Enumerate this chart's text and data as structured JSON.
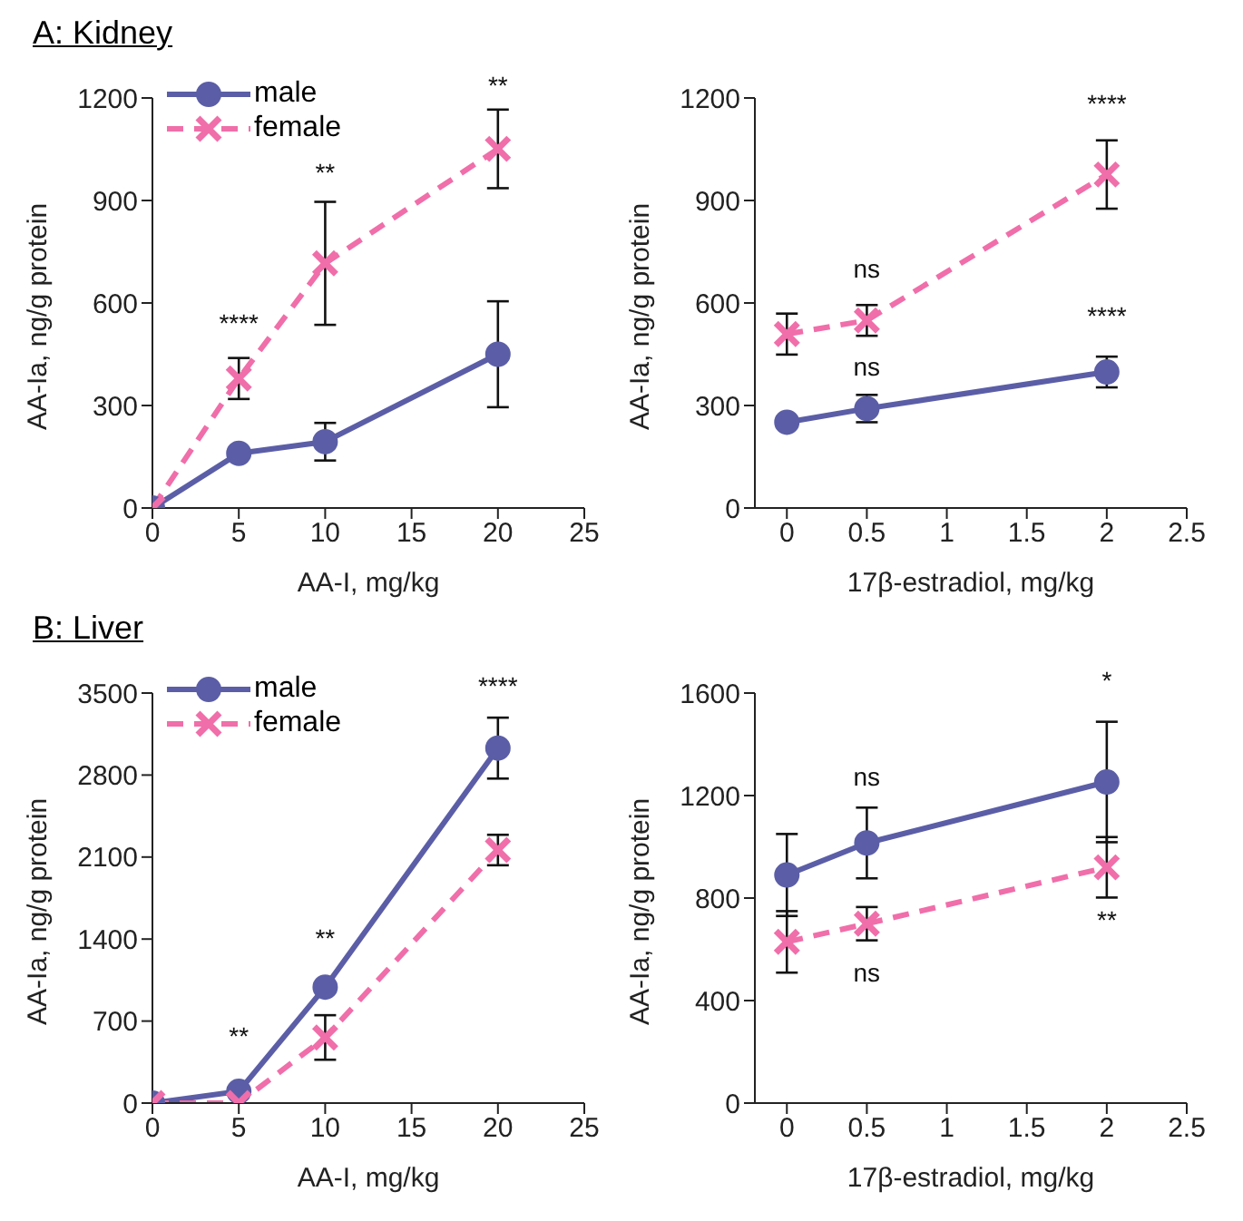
{
  "chart_data": [
    {
      "type": "line",
      "title": "A: Kidney",
      "xlabel": "AA-I, mg/kg",
      "ylabel": "AA-Ia, ng/g protein",
      "xlim": [
        0,
        25
      ],
      "xticks": [
        0,
        5,
        10,
        15,
        20,
        25
      ],
      "ylim": [
        0,
        1200
      ],
      "yticks": [
        0,
        300,
        600,
        900,
        1200
      ],
      "grid": false,
      "legend": "top left",
      "series": [
        {
          "name": "male",
          "color": "#5b5ea6",
          "x": [
            0,
            5,
            10,
            20
          ],
          "values": [
            0,
            160,
            194,
            450
          ],
          "errors": [
            null,
            null,
            55,
            155
          ],
          "marker": "circle",
          "line_style": "solid"
        },
        {
          "name": "female",
          "color": "#f06eaa",
          "x": [
            0,
            5,
            10,
            20
          ],
          "values": [
            0,
            379,
            716,
            1051
          ],
          "errors": [
            null,
            60,
            180,
            115
          ],
          "marker": "cross",
          "line_style": "dashed"
        }
      ],
      "annotations": [
        "****",
        "**",
        "**"
      ]
    },
    {
      "type": "line",
      "xlabel": "17β-estradiol, mg/kg",
      "ylabel": "AA-Ia, ng/g protein",
      "xlim": [
        -0.2,
        2.5
      ],
      "xticks": [
        0,
        0.5,
        1,
        1.5,
        2,
        2.5
      ],
      "ylim": [
        0,
        1200
      ],
      "yticks": [
        0,
        300,
        600,
        900,
        1200
      ],
      "grid": false,
      "series": [
        {
          "color": "#5b5ea6",
          "x": [
            0,
            0.5,
            2
          ],
          "values": [
            251,
            291,
            398
          ],
          "errors": [
            null,
            40,
            45
          ],
          "marker": "circle",
          "line_style": "solid"
        },
        {
          "color": "#f06eaa",
          "x": [
            0,
            0.5,
            2
          ],
          "values": [
            509,
            549,
            976
          ],
          "errors": [
            60,
            45,
            100
          ],
          "marker": "cross",
          "line_style": "dashed"
        }
      ],
      "annotations": [
        "ns",
        "ns",
        "****",
        "****"
      ]
    },
    {
      "type": "line",
      "title": "B: Liver",
      "xlabel": "AA-I, mg/kg",
      "ylabel": "AA-Ia, ng/g protein",
      "xlim": [
        0,
        25
      ],
      "xticks": [
        0,
        5,
        10,
        15,
        20,
        25
      ],
      "ylim": [
        0,
        3500
      ],
      "yticks": [
        0,
        700,
        1400,
        2100,
        2800,
        3500
      ],
      "grid": false,
      "legend": "top left",
      "series": [
        {
          "name": "male",
          "color": "#5b5ea6",
          "x": [
            0,
            5,
            10,
            20
          ],
          "values": [
            0,
            100,
            990,
            3030
          ],
          "errors": [
            null,
            null,
            null,
            260
          ],
          "marker": "circle",
          "line_style": "solid"
        },
        {
          "name": "female",
          "color": "#f06eaa",
          "x": [
            0,
            5,
            10,
            20
          ],
          "values": [
            0,
            0,
            560,
            2160
          ],
          "errors": [
            null,
            null,
            190,
            130
          ],
          "marker": "cross",
          "line_style": "dashed"
        }
      ],
      "annotations": [
        "**",
        "**",
        "****"
      ]
    },
    {
      "type": "line",
      "xlabel": "17β-estradiol, mg/kg",
      "ylabel": "AA-Ia, ng/g protein",
      "xlim": [
        -0.2,
        2.5
      ],
      "xticks": [
        0,
        0.5,
        1,
        1.5,
        2,
        2.5
      ],
      "ylim": [
        0,
        1600
      ],
      "yticks": [
        0,
        400,
        800,
        1200,
        1600
      ],
      "grid": false,
      "series": [
        {
          "color": "#5b5ea6",
          "x": [
            0,
            0.5,
            2
          ],
          "values": [
            890,
            1015,
            1253
          ],
          "errors": [
            160,
            138,
            235
          ],
          "marker": "circle",
          "line_style": "solid"
        },
        {
          "color": "#f06eaa",
          "x": [
            0,
            0.5,
            2
          ],
          "values": [
            629,
            700,
            920
          ],
          "errors": [
            120,
            65,
            118
          ],
          "marker": "cross",
          "line_style": "dashed"
        }
      ],
      "annotations": [
        "*",
        "ns",
        "ns",
        "**"
      ]
    }
  ]
}
